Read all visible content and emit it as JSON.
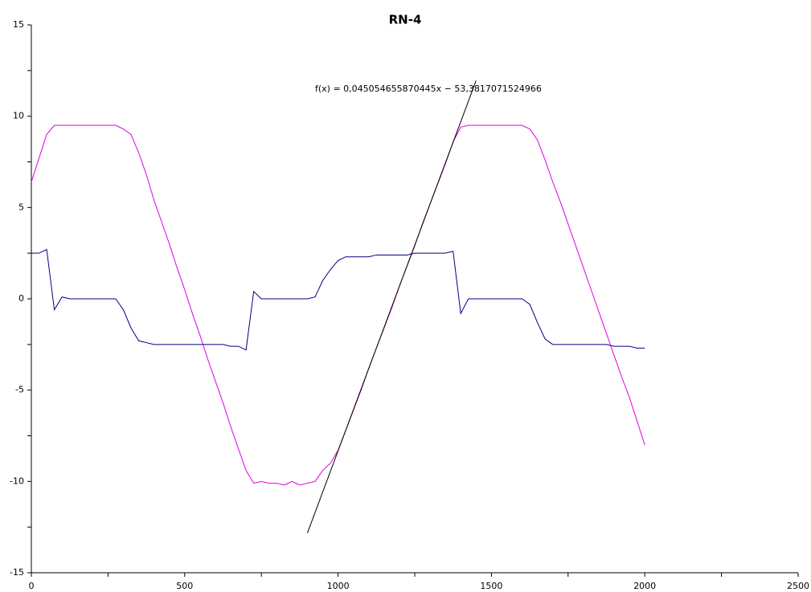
{
  "chart_data": {
    "type": "line",
    "title": "RN-4",
    "x": [
      0,
      25,
      50,
      75,
      100,
      125,
      150,
      175,
      200,
      225,
      250,
      275,
      300,
      325,
      350,
      375,
      400,
      425,
      450,
      475,
      500,
      525,
      550,
      575,
      600,
      625,
      650,
      675,
      700,
      725,
      750,
      775,
      800,
      825,
      850,
      875,
      900,
      925,
      950,
      975,
      1000,
      1025,
      1050,
      1075,
      1100,
      1125,
      1150,
      1175,
      1200,
      1225,
      1250,
      1275,
      1300,
      1325,
      1350,
      1375,
      1400,
      1425,
      1450,
      1475,
      1500,
      1525,
      1550,
      1575,
      1600,
      1625,
      1650,
      1675,
      1700,
      1725,
      1750,
      1775,
      1800,
      1825,
      1850,
      1875,
      1900,
      1925,
      1950,
      1975,
      2000
    ],
    "series": [
      {
        "color": "#dd00dd",
        "values": [
          6.4,
          7.7,
          9.0,
          9.5,
          9.5,
          9.5,
          9.5,
          9.5,
          9.5,
          9.5,
          9.5,
          9.5,
          9.3,
          9.0,
          8.0,
          6.8,
          5.4,
          4.2,
          3.0,
          1.7,
          0.5,
          -0.8,
          -2.0,
          -3.3,
          -4.5,
          -5.7,
          -7.0,
          -8.2,
          -9.4,
          -10.1,
          -10.0,
          -10.1,
          -10.1,
          -10.2,
          -10.0,
          -10.2,
          -10.1,
          -10.0,
          -9.4,
          -9.0,
          -8.3,
          -7.2,
          -6.1,
          -5.0,
          -3.8,
          -2.7,
          -1.6,
          -0.5,
          0.7,
          1.8,
          2.9,
          4.1,
          5.2,
          6.3,
          7.4,
          8.6,
          9.4,
          9.5,
          9.5,
          9.5,
          9.5,
          9.5,
          9.5,
          9.5,
          9.5,
          9.3,
          8.7,
          7.6,
          6.4,
          5.3,
          4.1,
          2.9,
          1.7,
          0.5,
          -0.7,
          -1.9,
          -3.1,
          -4.3,
          -5.4,
          -6.7,
          -8.0
        ]
      },
      {
        "color": "#000080",
        "values": [
          2.5,
          2.5,
          2.7,
          -0.6,
          0.1,
          0,
          0,
          0,
          0,
          0,
          0,
          0,
          -0.6,
          -1.6,
          -2.3,
          -2.4,
          -2.5,
          -2.5,
          -2.5,
          -2.5,
          -2.5,
          -2.5,
          -2.5,
          -2.5,
          -2.5,
          -2.5,
          -2.6,
          -2.6,
          -2.8,
          0.4,
          0,
          0,
          0,
          0,
          0,
          0,
          0,
          0.1,
          1.0,
          1.6,
          2.1,
          2.3,
          2.3,
          2.3,
          2.3,
          2.4,
          2.4,
          2.4,
          2.4,
          2.4,
          2.5,
          2.5,
          2.5,
          2.5,
          2.5,
          2.6,
          -0.8,
          0,
          0,
          0,
          0,
          0,
          0,
          0,
          0,
          -0.3,
          -1.3,
          -2.2,
          -2.5,
          -2.5,
          -2.5,
          -2.5,
          -2.5,
          -2.5,
          -2.5,
          -2.5,
          -2.6,
          -2.6,
          -2.6,
          -2.7,
          -2.7
        ]
      }
    ],
    "fit": {
      "label": "f(x) = 0,045054655870445x − 53,3817071524966",
      "color": "#000000",
      "x": [
        900,
        1450
      ],
      "values": [
        -12.83,
        11.95
      ]
    },
    "xlim": [
      0,
      2500
    ],
    "ylim": [
      -15,
      15
    ],
    "xticks": [
      0,
      500,
      1000,
      1500,
      2000,
      2500
    ],
    "yticks": [
      -15,
      -10,
      -5,
      0,
      5,
      10,
      15
    ],
    "xticks_minor": [
      250,
      750,
      1250,
      1750,
      2250
    ],
    "yticks_minor": [
      -12.5,
      -7.5,
      -2.5,
      2.5,
      7.5,
      12.5
    ],
    "grid": false
  }
}
